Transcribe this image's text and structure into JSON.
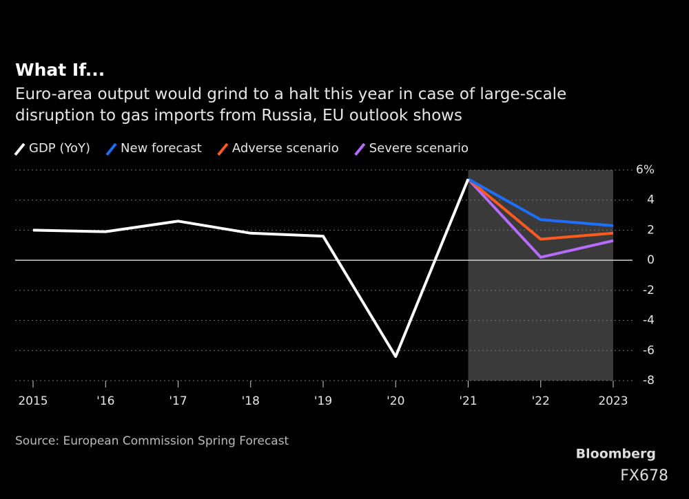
{
  "chart_data": {
    "type": "line",
    "title": "What If...",
    "subtitle": "Euro-area output would grind to a halt this year in case of large-scale disruption to gas imports from Russia, EU outlook shows",
    "source": "Source: European Commission Spring Forecast",
    "brand": "Bloomberg",
    "watermark": "FX678",
    "x": [
      2015,
      2016,
      2017,
      2018,
      2019,
      2020,
      2021,
      2022,
      2023
    ],
    "xlim": [
      2015,
      2023
    ],
    "xticks": [
      {
        "value": 2015,
        "label": "2015"
      },
      {
        "value": 2016,
        "label": "'16"
      },
      {
        "value": 2017,
        "label": "'17"
      },
      {
        "value": 2018,
        "label": "'18"
      },
      {
        "value": 2019,
        "label": "'19"
      },
      {
        "value": 2020,
        "label": "'20"
      },
      {
        "value": 2021,
        "label": "'21"
      },
      {
        "value": 2022,
        "label": "'22"
      },
      {
        "value": 2023,
        "label": "2023"
      }
    ],
    "ylim": [
      -8,
      6
    ],
    "yticks": [
      {
        "value": 6,
        "label": "6%"
      },
      4,
      2,
      0,
      -2,
      -4,
      -6,
      -8
    ],
    "grid": true,
    "shaded_region": [
      2021,
      2023
    ],
    "shade_color": "#3a3a3a",
    "series": [
      {
        "name": "GDP (YoY)",
        "color": "#ffffff",
        "values": [
          2.0,
          1.9,
          2.6,
          1.8,
          1.6,
          -6.4,
          5.4,
          null,
          null
        ]
      },
      {
        "name": "New forecast",
        "color": "#1f6fff",
        "values": [
          null,
          null,
          null,
          null,
          null,
          null,
          5.4,
          2.7,
          2.3
        ]
      },
      {
        "name": "Adverse scenario",
        "color": "#ff5a1f",
        "values": [
          null,
          null,
          null,
          null,
          null,
          null,
          5.4,
          1.4,
          1.8
        ]
      },
      {
        "name": "Severe scenario",
        "color": "#b56cff",
        "values": [
          null,
          null,
          null,
          null,
          null,
          null,
          5.4,
          0.2,
          1.3
        ]
      }
    ]
  }
}
